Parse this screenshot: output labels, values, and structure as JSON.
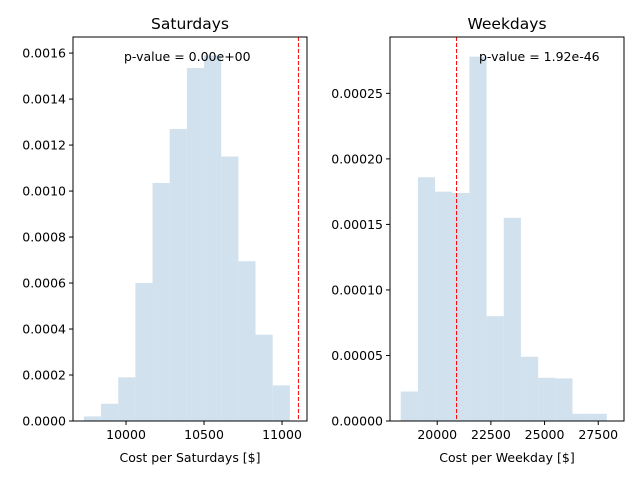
{
  "chart_data": [
    {
      "type": "histogram",
      "title": "Saturdays",
      "xlabel": "Cost per Saturdays [$]",
      "ylabel": "",
      "xlim": [
        9660,
        11160
      ],
      "ylim": [
        0,
        0.00167
      ],
      "xticks": [
        10000,
        10500,
        11000
      ],
      "xtick_labels": [
        "10000",
        "10500",
        "11000"
      ],
      "yticks": [
        0,
        0.0002,
        0.0004,
        0.0006,
        0.0008,
        0.001,
        0.0012,
        0.0014,
        0.0016
      ],
      "ytick_labels": [
        "0.0000",
        "0.0002",
        "0.0004",
        "0.0006",
        "0.0008",
        "0.0010",
        "0.0012",
        "0.0014",
        "0.0016"
      ],
      "bar_color": "#d1e1ed",
      "bins": [
        {
          "x0": 9730,
          "x1": 9840,
          "value": 2e-05
        },
        {
          "x0": 9840,
          "x1": 9950,
          "value": 7.5e-05
        },
        {
          "x0": 9950,
          "x1": 10060,
          "value": 0.00019
        },
        {
          "x0": 10060,
          "x1": 10170,
          "value": 0.0006
        },
        {
          "x0": 10170,
          "x1": 10280,
          "value": 0.001035
        },
        {
          "x0": 10280,
          "x1": 10390,
          "value": 0.00127
        },
        {
          "x0": 10390,
          "x1": 10500,
          "value": 0.001535
        },
        {
          "x0": 10500,
          "x1": 10610,
          "value": 0.00159
        },
        {
          "x0": 10610,
          "x1": 10720,
          "value": 0.00115
        },
        {
          "x0": 10720,
          "x1": 10830,
          "value": 0.000695
        },
        {
          "x0": 10830,
          "x1": 10940,
          "value": 0.000375
        },
        {
          "x0": 10940,
          "x1": 11050,
          "value": 0.000155
        }
      ],
      "reference_line": {
        "x": 11105,
        "color": "#ff0000",
        "style": "dashed"
      },
      "annotation": "p-value = 0.00e+00"
    },
    {
      "type": "histogram",
      "title": "Weekdays",
      "xlabel": "Cost per Weekday [$]",
      "ylabel": "",
      "xlim": [
        17800,
        28700
      ],
      "ylim": [
        0,
        0.000293
      ],
      "xticks": [
        20000,
        22500,
        25000,
        27500
      ],
      "xtick_labels": [
        "20000",
        "22500",
        "25000",
        "27500"
      ],
      "yticks": [
        0,
        5e-05,
        0.0001,
        0.00015,
        0.0002,
        0.00025
      ],
      "ytick_labels": [
        "0.00000",
        "0.00005",
        "0.00010",
        "0.00015",
        "0.00020",
        "0.00025"
      ],
      "bar_color": "#d1e1ed",
      "bins": [
        {
          "x0": 18300,
          "x1": 19100,
          "value": 2.25e-05
        },
        {
          "x0": 19100,
          "x1": 19900,
          "value": 0.000186
        },
        {
          "x0": 19900,
          "x1": 20700,
          "value": 0.000175
        },
        {
          "x0": 20700,
          "x1": 21500,
          "value": 0.000174
        },
        {
          "x0": 21500,
          "x1": 22300,
          "value": 0.000278
        },
        {
          "x0": 22300,
          "x1": 23100,
          "value": 8e-05
        },
        {
          "x0": 23100,
          "x1": 23900,
          "value": 0.000155
        },
        {
          "x0": 23900,
          "x1": 24700,
          "value": 4.9e-05
        },
        {
          "x0": 24700,
          "x1": 25500,
          "value": 3.3e-05
        },
        {
          "x0": 25500,
          "x1": 26300,
          "value": 3.25e-05
        },
        {
          "x0": 26300,
          "x1": 27100,
          "value": 5.5e-06
        },
        {
          "x0": 27100,
          "x1": 27900,
          "value": 5.5e-06
        }
      ],
      "reference_line": {
        "x": 20900,
        "color": "#ff0000",
        "style": "dashed"
      },
      "annotation": "p-value = 1.92e-46"
    }
  ]
}
